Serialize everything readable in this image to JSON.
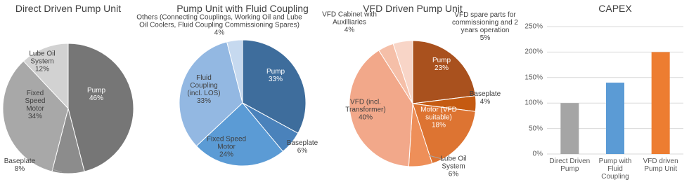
{
  "chart_data": [
    {
      "type": "pie",
      "title": "Direct Driven Pump Unit",
      "categories": [
        "Pump",
        "Baseplate",
        "Fixed Speed Motor",
        "Lube Oil System"
      ],
      "values": [
        46,
        8,
        34,
        12
      ],
      "value_labels": [
        "46%",
        "8%",
        "34%",
        "12%"
      ],
      "colors": [
        "#767676",
        "#8c8c8c",
        "#a8a8a8",
        "#d2d2d2"
      ]
    },
    {
      "type": "pie",
      "title": "Pump Unit with Fluid Coupling",
      "categories": [
        "Pump",
        "Baseplate",
        "Fixed Speed Motor",
        "Fluid Coupling (incl. LOS)",
        "Others (Connecting Couplings, Working Oil and Lube Oil Coolers, Fluid Coupling Commissioning Spares)"
      ],
      "values": [
        33,
        6,
        24,
        33,
        4
      ],
      "value_labels": [
        "33%",
        "6%",
        "24%",
        "33%",
        "4%"
      ],
      "colors": [
        "#3e6d9c",
        "#4a82bb",
        "#5b9bd5",
        "#93b8e2",
        "#c6d9ef"
      ]
    },
    {
      "type": "pie",
      "title": "VFD Driven Pump Unit",
      "categories": [
        "Pump",
        "Baseplate",
        "Motor (VFD suitable)",
        "Lube Oil System",
        "VFD (incl. Transformer)",
        "VFD Cabinet with Auxilliaries",
        "VFD spare parts for commissioning and 2 years operation"
      ],
      "values": [
        23,
        4,
        18,
        6,
        40,
        4,
        5
      ],
      "value_labels": [
        "23%",
        "4%",
        "18%",
        "6%",
        "40%",
        "4%",
        "5%"
      ],
      "colors": [
        "#a9511e",
        "#c55a11",
        "#dd7432",
        "#ee8f59",
        "#f2a88a",
        "#f5bfa8",
        "#f8d5c7"
      ]
    },
    {
      "type": "bar",
      "title": "CAPEX",
      "categories": [
        "Direct Driven Pump",
        "Pump with Fluid Coupling",
        "VFD driven Pump Unit"
      ],
      "values": [
        100,
        140,
        200
      ],
      "colors": [
        "#a5a5a5",
        "#5b9bd5",
        "#ed7d31"
      ],
      "ylim": [
        0,
        250
      ],
      "yticks": [
        {
          "value": 0,
          "label": "0%"
        },
        {
          "value": 50,
          "label": "50%"
        },
        {
          "value": 100,
          "label": "100%"
        },
        {
          "value": 150,
          "label": "150%"
        },
        {
          "value": 200,
          "label": "200%"
        },
        {
          "value": 250,
          "label": "250%"
        }
      ],
      "grid": true
    }
  ]
}
